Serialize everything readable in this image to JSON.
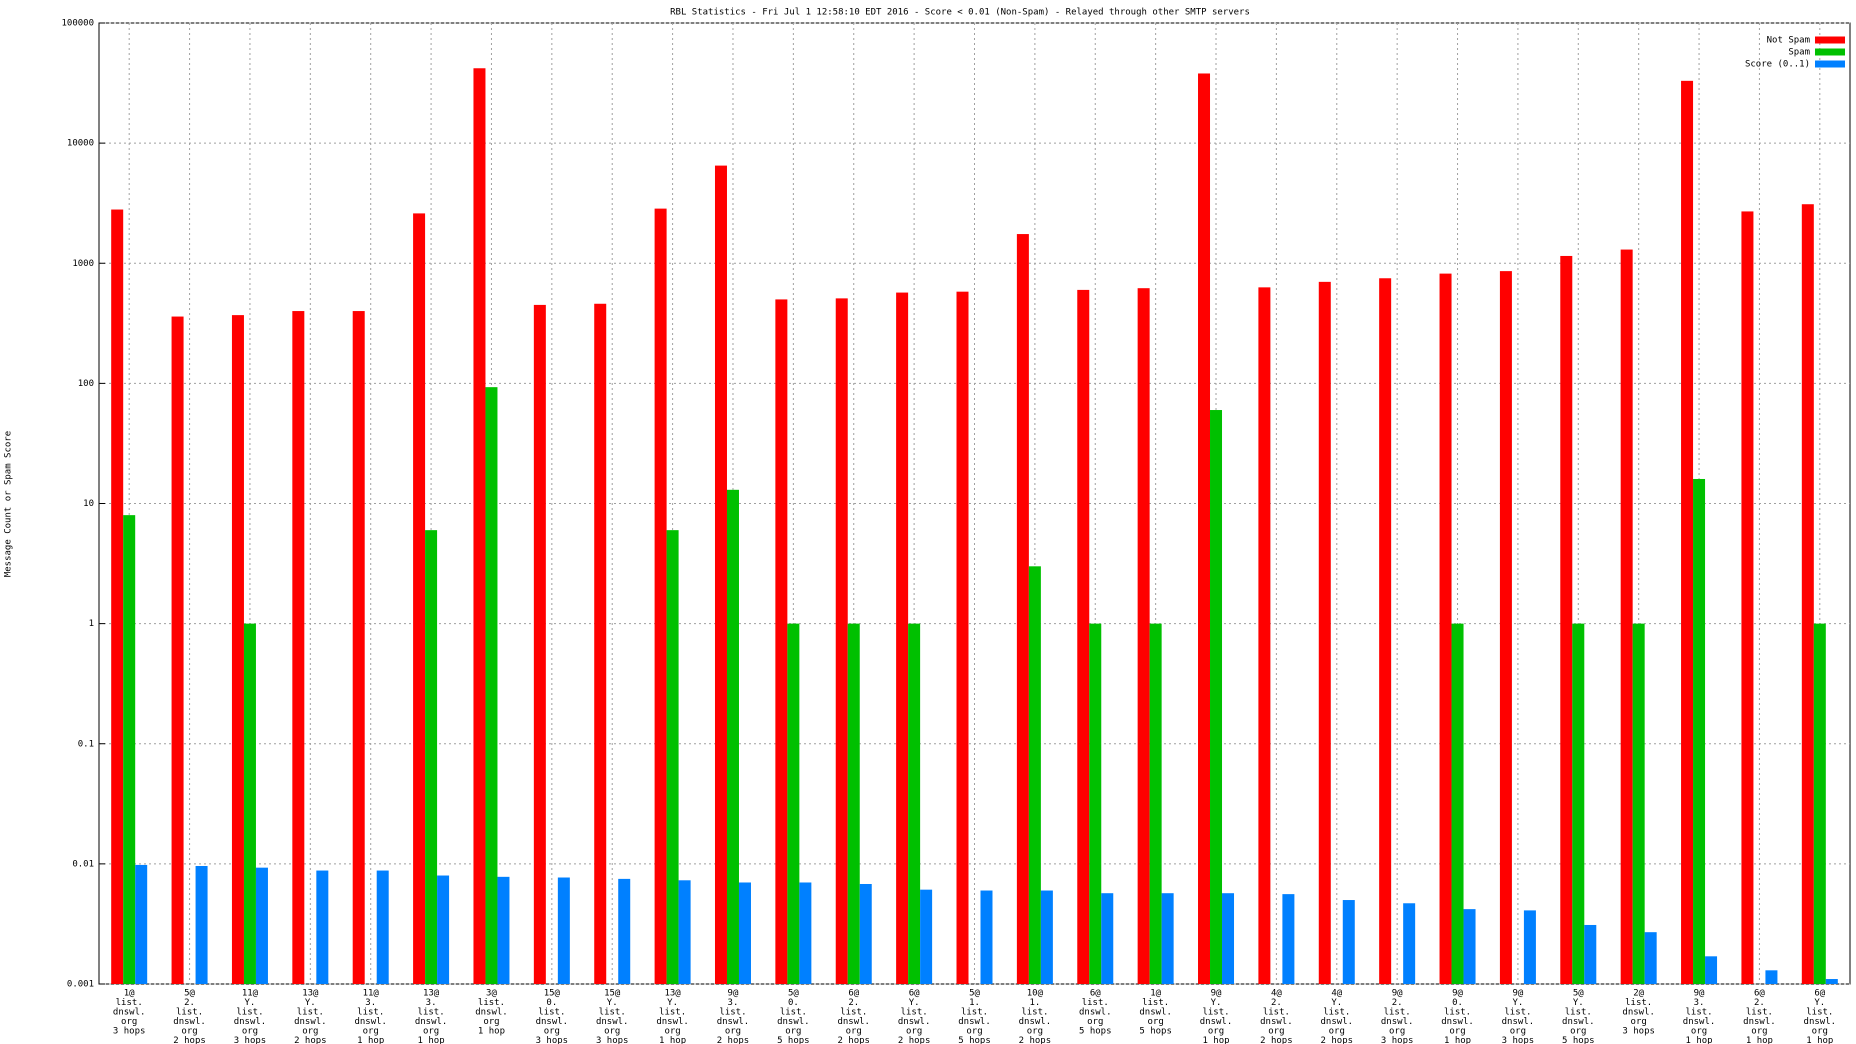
{
  "chart_data": {
    "type": "bar",
    "title": "RBL Statistics - Fri Jul  1 12:58:10 EDT 2016 - Score < 0.01 (Non-Spam) - Relayed through other SMTP servers",
    "y_label": "Message Count or Spam Score",
    "log_scale": true,
    "grid": true,
    "legend": "top-right",
    "categories": [
      [
        "1@",
        "list.",
        "dnswl.",
        "org",
        "3 hops"
      ],
      [
        "5@",
        "2.",
        "list.",
        "dnswl.",
        "org",
        "2 hops"
      ],
      [
        "11@",
        "Y.",
        "list.",
        "dnswl.",
        "org",
        "3 hops"
      ],
      [
        "13@",
        "Y.",
        "list.",
        "dnswl.",
        "org",
        "2 hops"
      ],
      [
        "11@",
        "3.",
        "list.",
        "dnswl.",
        "org",
        "1 hop"
      ],
      [
        "13@",
        "3.",
        "list.",
        "dnswl.",
        "org",
        "1 hop"
      ],
      [
        "3@",
        "list.",
        "dnswl.",
        "org",
        "1 hop"
      ],
      [
        "15@",
        "0.",
        "list.",
        "dnswl.",
        "org",
        "3 hops"
      ],
      [
        "15@",
        "Y.",
        "list.",
        "dnswl.",
        "org",
        "3 hops"
      ],
      [
        "13@",
        "Y.",
        "list.",
        "dnswl.",
        "org",
        "1 hop"
      ],
      [
        "9@",
        "3.",
        "list.",
        "dnswl.",
        "org",
        "2 hops"
      ],
      [
        "5@",
        "0.",
        "list.",
        "dnswl.",
        "org",
        "5 hops"
      ],
      [
        "6@",
        "2.",
        "list.",
        "dnswl.",
        "org",
        "2 hops"
      ],
      [
        "6@",
        "Y.",
        "list.",
        "dnswl.",
        "org",
        "2 hops"
      ],
      [
        "5@",
        "1.",
        "list.",
        "dnswl.",
        "org",
        "5 hops"
      ],
      [
        "10@",
        "1.",
        "list.",
        "dnswl.",
        "org",
        "2 hops"
      ],
      [
        "6@",
        "list.",
        "dnswl.",
        "org",
        "5 hops"
      ],
      [
        "1@",
        "list.",
        "dnswl.",
        "org",
        "5 hops"
      ],
      [
        "9@",
        "Y.",
        "list.",
        "dnswl.",
        "org",
        "1 hop"
      ],
      [
        "4@",
        "2.",
        "list.",
        "dnswl.",
        "org",
        "2 hops"
      ],
      [
        "4@",
        "Y.",
        "list.",
        "dnswl.",
        "org",
        "2 hops"
      ],
      [
        "9@",
        "2.",
        "list.",
        "dnswl.",
        "org",
        "3 hops"
      ],
      [
        "9@",
        "0.",
        "list.",
        "dnswl.",
        "org",
        "1 hop"
      ],
      [
        "9@",
        "Y.",
        "list.",
        "dnswl.",
        "org",
        "3 hops"
      ],
      [
        "5@",
        "Y.",
        "list.",
        "dnswl.",
        "org",
        "5 hops"
      ],
      [
        "2@",
        "list.",
        "dnswl.",
        "org",
        "3 hops"
      ],
      [
        "9@",
        "3.",
        "list.",
        "dnswl.",
        "org",
        "1 hop"
      ],
      [
        "6@",
        "2.",
        "list.",
        "dnswl.",
        "org",
        "1 hop"
      ],
      [
        "6@",
        "Y.",
        "list.",
        "dnswl.",
        "org",
        "1 hop"
      ]
    ],
    "series": [
      {
        "name": "Not Spam",
        "color": "#ff0000",
        "values": [
          2800,
          360,
          370,
          400,
          400,
          2600,
          42000,
          450,
          460,
          2850,
          6500,
          500,
          510,
          570,
          580,
          1750,
          600,
          620,
          38000,
          630,
          700,
          750,
          820,
          860,
          1150,
          1300,
          33000,
          2700,
          3100
        ]
      },
      {
        "name": "Spam",
        "color": "#00c000",
        "values": [
          8,
          null,
          1,
          null,
          null,
          6,
          93,
          null,
          null,
          6,
          13,
          1,
          1,
          1,
          null,
          3,
          1,
          1,
          60,
          null,
          null,
          null,
          1,
          null,
          1,
          1,
          16,
          null,
          1
        ]
      },
      {
        "name": "Score (0..1)",
        "color": "#0080ff",
        "values": [
          0.0098,
          0.0096,
          0.0093,
          0.0088,
          0.0088,
          0.008,
          0.0078,
          0.0077,
          0.0075,
          0.0073,
          0.007,
          0.007,
          0.0068,
          0.0061,
          0.006,
          0.006,
          0.0057,
          0.0057,
          0.0057,
          0.0056,
          0.005,
          0.0047,
          0.0042,
          0.0041,
          0.0031,
          0.0027,
          0.0017,
          0.0013,
          0.0011
        ]
      }
    ],
    "ylim": [
      0.001,
      100000
    ],
    "yticks": [
      0.001,
      0.01,
      0.1,
      1,
      10,
      100,
      1000,
      10000,
      100000
    ]
  }
}
